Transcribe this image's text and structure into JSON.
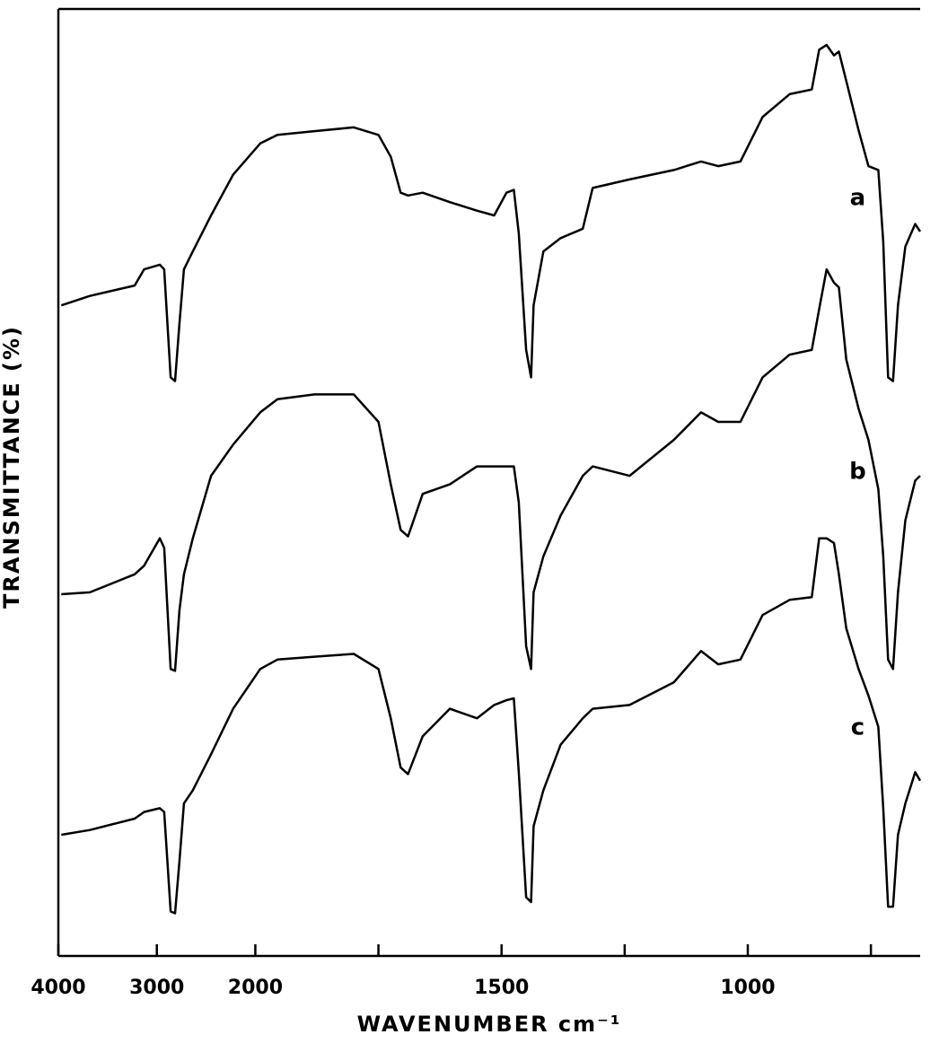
{
  "chart_data": {
    "type": "line",
    "xlabel": "WAVENUMBER cm⁻¹",
    "ylabel": "TRANSMITTANCE (%)",
    "xlim": [
      4000,
      650
    ],
    "ylim": [
      0,
      100
    ],
    "x_scale": {
      "break": 2000,
      "compression": 5
    },
    "xticks": [
      4000,
      3000,
      2000,
      1500,
      1000
    ],
    "xminorticks": [
      1750,
      1250,
      750
    ],
    "x": [
      3970,
      3680,
      3225,
      3130,
      2970,
      2925,
      2860,
      2815,
      2770,
      2725,
      2635,
      2450,
      2225,
      1990,
      1955,
      1880,
      1800,
      1750,
      1725,
      1705,
      1690,
      1660,
      1605,
      1550,
      1515,
      1490,
      1475,
      1465,
      1450,
      1440,
      1435,
      1415,
      1380,
      1335,
      1315,
      1240,
      1150,
      1095,
      1060,
      1015,
      970,
      915,
      870,
      855,
      840,
      825,
      815,
      800,
      775,
      755,
      735,
      725,
      715,
      705,
      695,
      680,
      660,
      650
    ],
    "series": [
      {
        "name": "a",
        "color": "#000000",
        "values": [
          68.7,
          69.7,
          70.8,
          72.5,
          73.0,
          72.5,
          61.1,
          60.7,
          66.8,
          72.5,
          74.4,
          78.2,
          82.5,
          85.8,
          86.7,
          87.1,
          87.5,
          86.7,
          84.4,
          80.6,
          80.3,
          80.6,
          79.6,
          78.7,
          78.2,
          80.6,
          80.9,
          76.3,
          64.0,
          61.1,
          68.7,
          74.4,
          75.8,
          76.8,
          81.1,
          82.0,
          83.0,
          83.9,
          83.4,
          83.9,
          88.6,
          91.0,
          91.5,
          95.7,
          96.2,
          95.1,
          95.5,
          92.4,
          87.2,
          83.4,
          83.0,
          75.4,
          61.1,
          60.7,
          68.7,
          74.9,
          77.3,
          76.5
        ]
      },
      {
        "name": "b",
        "color": "#000000",
        "values": [
          38.2,
          38.4,
          40.3,
          41.2,
          44.1,
          43.1,
          30.3,
          30.1,
          36.5,
          40.3,
          44.1,
          50.7,
          54.0,
          57.4,
          58.8,
          59.3,
          59.3,
          56.4,
          49.8,
          45.0,
          44.3,
          48.8,
          49.8,
          51.7,
          51.7,
          51.7,
          51.7,
          47.9,
          32.7,
          30.3,
          38.4,
          42.2,
          46.5,
          50.7,
          51.7,
          50.7,
          54.5,
          57.4,
          56.4,
          56.4,
          61.1,
          63.5,
          64.0,
          68.3,
          72.5,
          71.1,
          70.6,
          63.0,
          57.8,
          54.5,
          49.3,
          42.2,
          31.3,
          30.3,
          38.4,
          46.0,
          50.2,
          50.7
        ]
      },
      {
        "name": "c",
        "color": "#000000",
        "values": [
          12.8,
          13.3,
          14.5,
          15.2,
          15.6,
          15.2,
          4.7,
          4.5,
          10.0,
          16.1,
          17.5,
          21.3,
          26.1,
          30.3,
          31.3,
          31.6,
          31.9,
          30.3,
          25.1,
          19.9,
          19.2,
          23.2,
          26.1,
          25.1,
          26.5,
          27.0,
          27.2,
          19.4,
          6.2,
          5.7,
          13.7,
          17.5,
          22.3,
          25.1,
          26.1,
          26.5,
          28.9,
          32.2,
          30.8,
          31.3,
          36.0,
          37.6,
          37.9,
          44.1,
          44.1,
          43.6,
          40.3,
          34.6,
          30.3,
          27.5,
          24.2,
          15.6,
          5.2,
          5.2,
          12.8,
          16.1,
          19.4,
          18.5
        ]
      }
    ]
  }
}
